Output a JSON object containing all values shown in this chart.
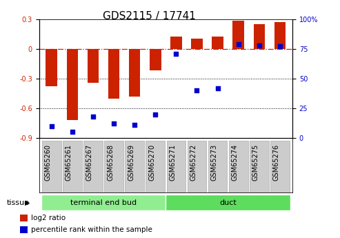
{
  "title": "GDS2115 / 17741",
  "samples": [
    "GSM65260",
    "GSM65261",
    "GSM65267",
    "GSM65268",
    "GSM65269",
    "GSM65270",
    "GSM65271",
    "GSM65272",
    "GSM65273",
    "GSM65274",
    "GSM65275",
    "GSM65276"
  ],
  "log2_ratio": [
    -0.38,
    -0.72,
    -0.34,
    -0.5,
    -0.48,
    -0.22,
    0.12,
    0.1,
    0.12,
    0.28,
    0.25,
    0.27
  ],
  "percentile_rank": [
    10,
    5,
    18,
    12,
    11,
    20,
    71,
    40,
    42,
    79,
    78,
    77
  ],
  "groups": [
    {
      "label": "terminal end bud",
      "start": 0,
      "end": 6,
      "color": "#90EE90"
    },
    {
      "label": "duct",
      "start": 6,
      "end": 12,
      "color": "#5DDC5D"
    }
  ],
  "bar_color": "#CC2200",
  "dot_color": "#0000CC",
  "ylim_left": [
    -0.9,
    0.3
  ],
  "ylim_right": [
    0,
    100
  ],
  "yticks_left": [
    -0.9,
    -0.6,
    -0.3,
    0.0,
    0.3
  ],
  "yticks_right": [
    0,
    25,
    50,
    75,
    100
  ],
  "ylabel_left_color": "#CC2200",
  "ylabel_right_color": "#0000CC",
  "hline_y": 0.0,
  "dotted_hlines": [
    -0.3,
    -0.6
  ],
  "background_color": "#ffffff",
  "title_fontsize": 11,
  "tick_fontsize": 7,
  "bar_width": 0.55,
  "tissue_label": "tissue",
  "legend_items": [
    {
      "label": "log2 ratio",
      "color": "#CC2200"
    },
    {
      "label": "percentile rank within the sample",
      "color": "#0000CC"
    }
  ],
  "xtick_bg_color": "#cccccc",
  "xtick_border_color": "#aaaaaa"
}
